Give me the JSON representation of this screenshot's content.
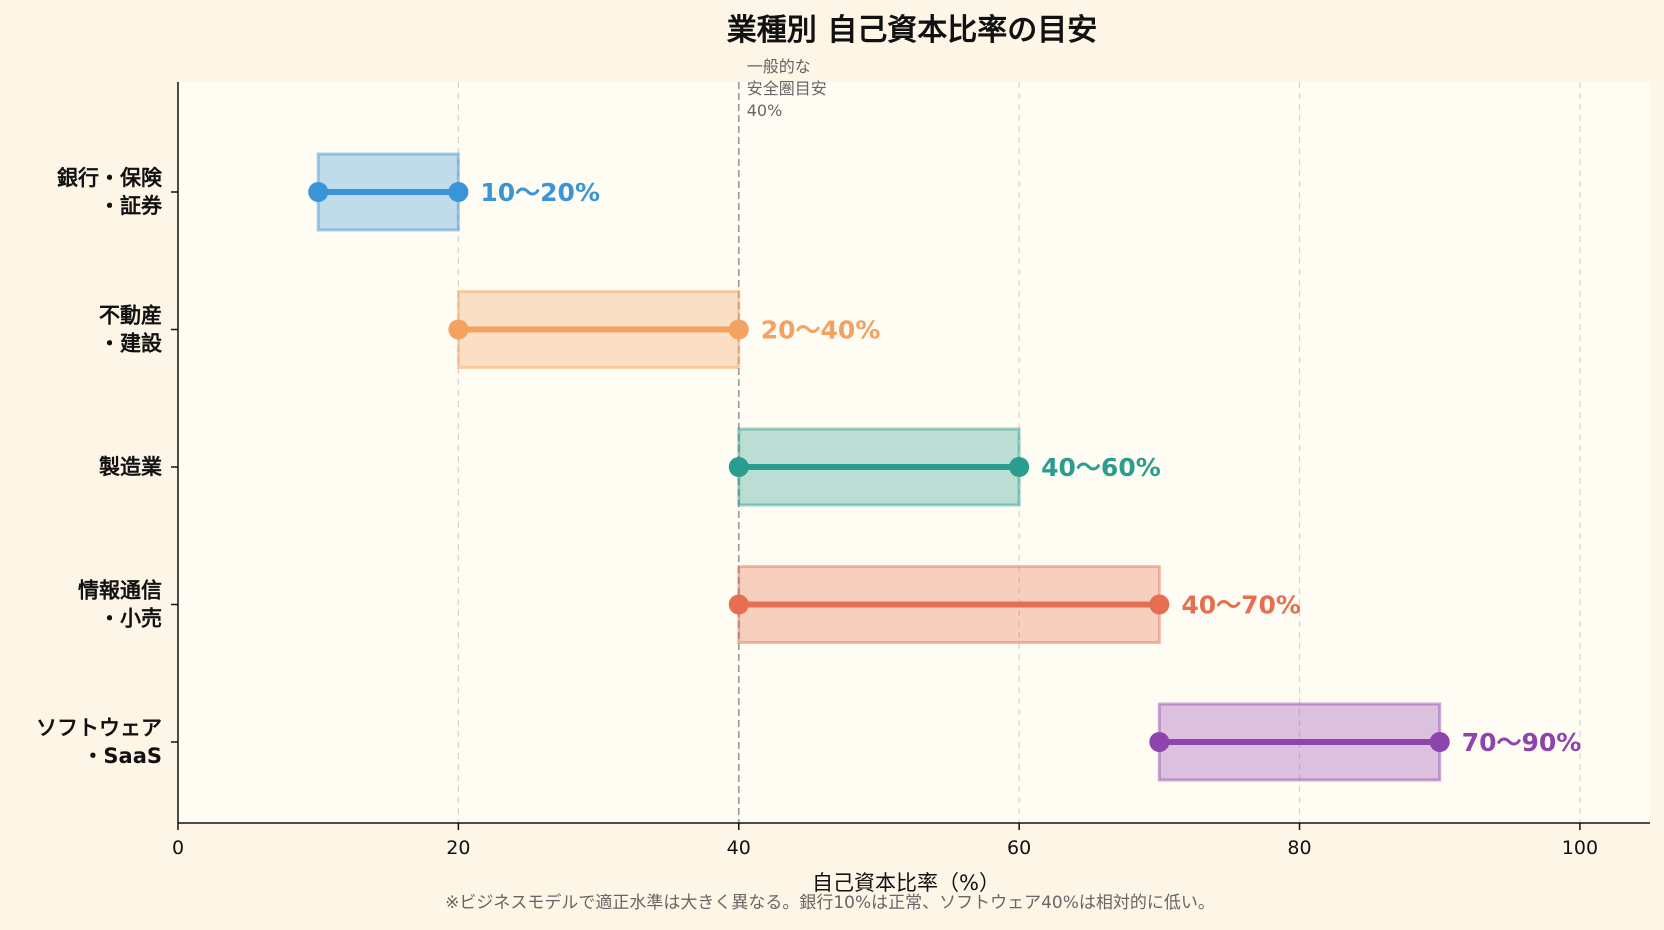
{
  "chart_data": {
    "type": "range-bar",
    "title": "業種別 自己資本比率の目安",
    "xlabel": "自己資本比率（%）",
    "xlim": [
      0,
      105
    ],
    "xticks": [
      "0",
      "20",
      "40",
      "60",
      "80",
      "100"
    ],
    "xtick_values": [
      0,
      20,
      40,
      60,
      80,
      100
    ],
    "grid": "vertical dashed",
    "reference_line": {
      "value": 40,
      "label_lines": [
        "一般的な",
        "安全圏目安",
        "40%"
      ]
    },
    "categories": [
      {
        "label_lines": [
          "銀行・保険",
          "・証券"
        ],
        "low": 10,
        "high": 20,
        "label": "10〜20%",
        "color": "#3a94d8"
      },
      {
        "label_lines": [
          "不動産",
          "・建設"
        ],
        "low": 20,
        "high": 40,
        "label": "20〜40%",
        "color": "#f4a261"
      },
      {
        "label_lines": [
          "製造業"
        ],
        "low": 40,
        "high": 60,
        "label": "40〜60%",
        "color": "#2a9d8f"
      },
      {
        "label_lines": [
          "情報通信",
          "・小売"
        ],
        "low": 40,
        "high": 70,
        "label": "40〜70%",
        "color": "#e76f51"
      },
      {
        "label_lines": [
          "ソフトウェア",
          "・SaaS"
        ],
        "low": 70,
        "high": 90,
        "label": "70〜90%",
        "color": "#8e44ad"
      }
    ],
    "footnote": "※ビジネスモデルで適正水準は大きく異なる。銀行10%は正常、ソフトウェア40%は相対的に低い。"
  }
}
